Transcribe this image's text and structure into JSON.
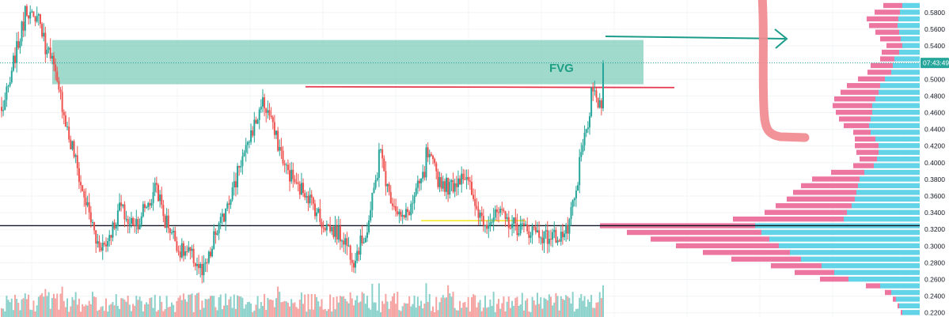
{
  "chart_data": {
    "type": "candlestick",
    "title": "",
    "grid": true,
    "price_axis": {
      "ticks": [
        "0.5800",
        "0.5600",
        "0.5400",
        "0.5200",
        "0.5000",
        "0.4800",
        "0.4600",
        "0.4400",
        "0.4200",
        "0.4000",
        "0.3800",
        "0.3600",
        "0.3400",
        "0.3200",
        "0.3000",
        "0.2800",
        "0.2600",
        "0.2400",
        "0.2200"
      ],
      "tick_values": [
        0.58,
        0.56,
        0.54,
        0.52,
        0.5,
        0.48,
        0.46,
        0.44,
        0.42,
        0.4,
        0.38,
        0.36,
        0.34,
        0.32,
        0.3,
        0.28,
        0.26,
        0.24,
        0.22
      ],
      "ylim": [
        0.215,
        0.595
      ]
    },
    "current_price": 0.5195,
    "countdown_label": "07:43:49",
    "annotations": {
      "fvg_label": "FVG",
      "fvg_zone": {
        "low": 0.494,
        "high": 0.547,
        "color": "#7fcdbb"
      },
      "resistance_level": {
        "price": 0.491,
        "color": "#e53950"
      },
      "support_level": {
        "price": 0.3245,
        "color": "#131722"
      },
      "range_level": {
        "price": 0.3305,
        "color": "#f2e81d"
      }
    },
    "colors": {
      "up": "#26a69a",
      "down": "#ef5350",
      "volume_up": "#8bd1cb",
      "volume_down": "#f5a3a1",
      "vp_sell": "#ec6f9c",
      "vp_buy": "#5bd2e6",
      "arrow": "#1b9c8a",
      "marker": "#f08a8f"
    },
    "ohlc_anchors": [
      [
        0.47,
        0.46
      ],
      [
        0.51,
        0.52
      ],
      [
        0.575,
        0.59
      ],
      [
        0.56,
        0.585
      ],
      [
        0.52,
        0.545
      ],
      [
        0.47,
        0.48
      ],
      [
        0.41,
        0.42
      ],
      [
        0.355,
        0.36
      ],
      [
        0.31,
        0.305
      ],
      [
        0.3,
        0.31
      ],
      [
        0.34,
        0.35
      ],
      [
        0.32,
        0.33
      ],
      [
        0.33,
        0.345
      ],
      [
        0.36,
        0.38
      ],
      [
        0.32,
        0.33
      ],
      [
        0.3,
        0.295
      ],
      [
        0.29,
        0.29
      ],
      [
        0.27,
        0.265
      ],
      [
        0.3,
        0.31
      ],
      [
        0.34,
        0.35
      ],
      [
        0.38,
        0.395
      ],
      [
        0.42,
        0.43
      ],
      [
        0.465,
        0.475
      ],
      [
        0.45,
        0.44
      ],
      [
        0.4,
        0.395
      ],
      [
        0.375,
        0.37
      ],
      [
        0.365,
        0.36
      ],
      [
        0.335,
        0.33
      ],
      [
        0.32,
        0.32
      ],
      [
        0.31,
        0.31
      ],
      [
        0.28,
        0.29
      ],
      [
        0.32,
        0.32
      ],
      [
        0.4,
        0.42
      ],
      [
        0.35,
        0.36
      ],
      [
        0.33,
        0.33
      ],
      [
        0.355,
        0.36
      ],
      [
        0.39,
        0.41
      ],
      [
        0.385,
        0.38
      ],
      [
        0.37,
        0.37
      ],
      [
        0.385,
        0.39
      ],
      [
        0.36,
        0.35
      ],
      [
        0.33,
        0.33
      ],
      [
        0.335,
        0.34
      ],
      [
        0.328,
        0.33
      ],
      [
        0.32,
        0.322
      ],
      [
        0.318,
        0.32
      ],
      [
        0.312,
        0.31
      ],
      [
        0.312,
        0.312
      ],
      [
        0.316,
        0.32
      ],
      [
        0.38,
        0.4
      ],
      [
        0.47,
        0.48
      ],
      [
        0.468,
        0.47
      ]
    ],
    "final_close": 0.5195,
    "volume_profile": [
      {
        "price": 0.588,
        "sell": 24,
        "buy": 22
      },
      {
        "price": 0.58,
        "sell": 32,
        "buy": 25
      },
      {
        "price": 0.572,
        "sell": 40,
        "buy": 27
      },
      {
        "price": 0.564,
        "sell": 36,
        "buy": 28
      },
      {
        "price": 0.556,
        "sell": 30,
        "buy": 26
      },
      {
        "price": 0.548,
        "sell": 26,
        "buy": 24
      },
      {
        "price": 0.54,
        "sell": 20,
        "buy": 22
      },
      {
        "price": 0.532,
        "sell": 22,
        "buy": 26
      },
      {
        "price": 0.524,
        "sell": 18,
        "buy": 32
      },
      {
        "price": 0.516,
        "sell": 28,
        "buy": 34
      },
      {
        "price": 0.508,
        "sell": 30,
        "buy": 36
      },
      {
        "price": 0.5,
        "sell": 34,
        "buy": 44
      },
      {
        "price": 0.492,
        "sell": 42,
        "buy": 50
      },
      {
        "price": 0.484,
        "sell": 48,
        "buy": 52
      },
      {
        "price": 0.476,
        "sell": 52,
        "buy": 56
      },
      {
        "price": 0.468,
        "sell": 50,
        "buy": 60
      },
      {
        "price": 0.46,
        "sell": 46,
        "buy": 60
      },
      {
        "price": 0.452,
        "sell": 40,
        "buy": 62
      },
      {
        "price": 0.444,
        "sell": 32,
        "buy": 64
      },
      {
        "price": 0.436,
        "sell": 22,
        "buy": 62
      },
      {
        "price": 0.428,
        "sell": 26,
        "buy": 56
      },
      {
        "price": 0.42,
        "sell": 30,
        "buy": 52
      },
      {
        "price": 0.412,
        "sell": 28,
        "buy": 52
      },
      {
        "price": 0.404,
        "sell": 22,
        "buy": 54
      },
      {
        "price": 0.396,
        "sell": 26,
        "buy": 58
      },
      {
        "price": 0.388,
        "sell": 42,
        "buy": 70
      },
      {
        "price": 0.38,
        "sell": 60,
        "buy": 76
      },
      {
        "price": 0.372,
        "sell": 72,
        "buy": 78
      },
      {
        "price": 0.364,
        "sell": 80,
        "buy": 80
      },
      {
        "price": 0.356,
        "sell": 86,
        "buy": 82
      },
      {
        "price": 0.348,
        "sell": 96,
        "buy": 86
      },
      {
        "price": 0.34,
        "sell": 104,
        "buy": 92
      },
      {
        "price": 0.332,
        "sell": 140,
        "buy": 96
      },
      {
        "price": 0.324,
        "sell": 196,
        "buy": 208
      },
      {
        "price": 0.316,
        "sell": 170,
        "buy": 200
      },
      {
        "price": 0.308,
        "sell": 150,
        "buy": 190
      },
      {
        "price": 0.3,
        "sell": 130,
        "buy": 178
      },
      {
        "price": 0.292,
        "sell": 110,
        "buy": 164
      },
      {
        "price": 0.284,
        "sell": 88,
        "buy": 150
      },
      {
        "price": 0.276,
        "sell": 64,
        "buy": 124
      },
      {
        "price": 0.268,
        "sell": 50,
        "buy": 108
      },
      {
        "price": 0.26,
        "sell": 36,
        "buy": 90
      },
      {
        "price": 0.252,
        "sell": 18,
        "buy": 50
      },
      {
        "price": 0.244,
        "sell": 8,
        "buy": 36
      },
      {
        "price": 0.236,
        "sell": 4,
        "buy": 30
      },
      {
        "price": 0.228,
        "sell": 2,
        "buy": 26
      },
      {
        "price": 0.22,
        "sell": 2,
        "buy": 22
      }
    ]
  }
}
